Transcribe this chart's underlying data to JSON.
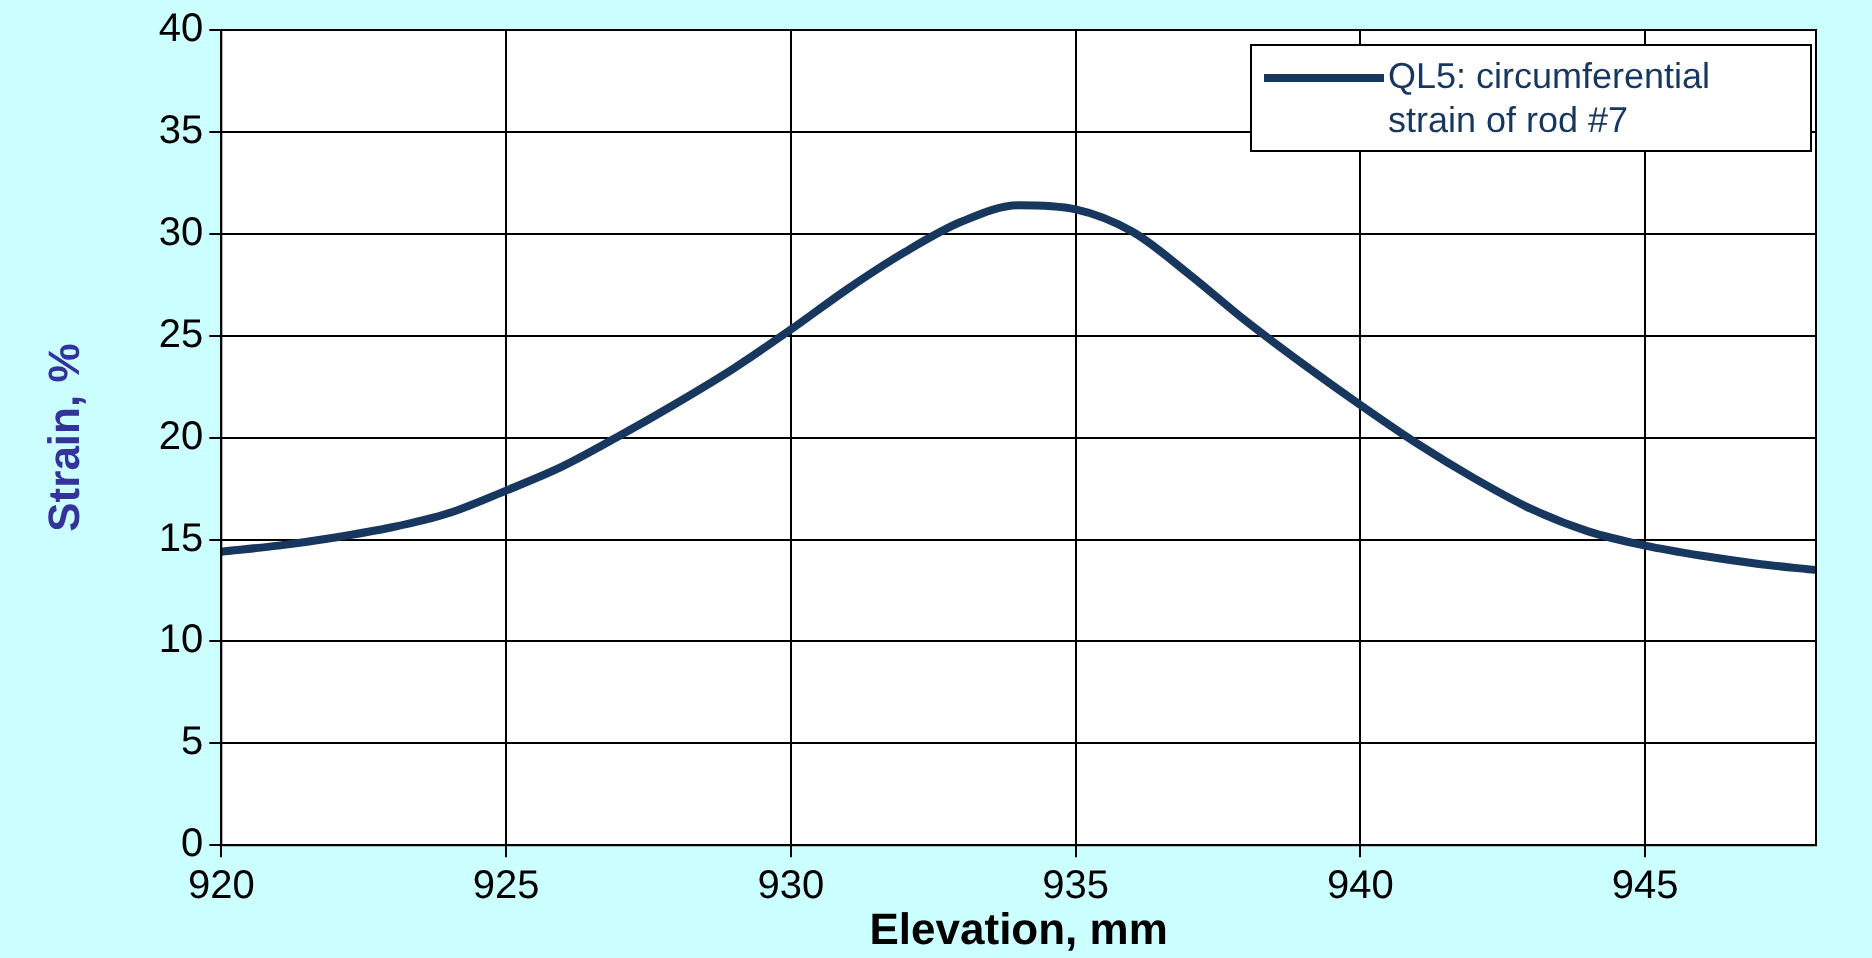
{
  "chart_data": {
    "type": "line",
    "xlabel": "Elevation, mm",
    "ylabel": "Strain, %",
    "x": [
      920,
      921,
      922,
      923,
      924,
      925,
      926,
      927,
      928,
      929,
      930,
      931,
      932,
      933,
      934,
      935,
      936,
      937,
      938,
      939,
      940,
      941,
      942,
      943,
      944,
      945,
      946,
      947,
      948
    ],
    "series": [
      {
        "name": "QL5: circumferential strain of rod #7",
        "color": "#17375e",
        "values": [
          14.4,
          14.7,
          15.1,
          15.6,
          16.3,
          17.4,
          18.6,
          20.1,
          21.7,
          23.4,
          25.3,
          27.3,
          29.1,
          30.6,
          31.4,
          31.2,
          30.1,
          28.0,
          25.7,
          23.6,
          21.6,
          19.7,
          18.0,
          16.5,
          15.4,
          14.7,
          14.2,
          13.8,
          13.5
        ]
      }
    ],
    "xlim": [
      920,
      948
    ],
    "xticks": [
      920,
      925,
      930,
      935,
      940,
      945
    ],
    "ylim": [
      0,
      40
    ],
    "yticks": [
      0,
      5,
      10,
      15,
      20,
      25,
      30,
      35,
      40
    ],
    "grid": true,
    "legend": "top right",
    "marker": "none",
    "line_style": "solid"
  }
}
